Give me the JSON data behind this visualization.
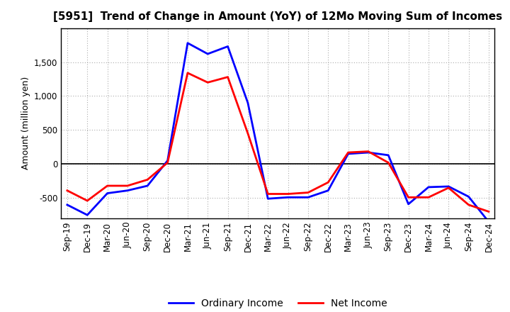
{
  "title": "[5951]  Trend of Change in Amount (YoY) of 12Mo Moving Sum of Incomes",
  "ylabel": "Amount (million yen)",
  "x_labels": [
    "Sep-19",
    "Dec-19",
    "Mar-20",
    "Jun-20",
    "Sep-20",
    "Dec-20",
    "Mar-21",
    "Jun-21",
    "Sep-21",
    "Dec-21",
    "Mar-22",
    "Jun-22",
    "Sep-22",
    "Dec-22",
    "Mar-23",
    "Jun-23",
    "Sep-23",
    "Dec-23",
    "Mar-24",
    "Jun-24",
    "Sep-24",
    "Dec-24"
  ],
  "ordinary_income": [
    -600,
    -750,
    -430,
    -390,
    -320,
    50,
    1780,
    1620,
    1730,
    900,
    -510,
    -490,
    -490,
    -390,
    150,
    170,
    130,
    -590,
    -340,
    -330,
    -480,
    -850
  ],
  "net_income": [
    -390,
    -540,
    -320,
    -320,
    -230,
    20,
    1340,
    1200,
    1280,
    450,
    -440,
    -440,
    -420,
    -270,
    170,
    185,
    20,
    -490,
    -490,
    -350,
    -600,
    -700
  ],
  "ordinary_income_color": "#0000FF",
  "net_income_color": "#FF0000",
  "background_color": "#FFFFFF",
  "grid_color": "#AAAAAA",
  "ylim": [
    -800,
    2000
  ],
  "yticks": [
    -500,
    0,
    500,
    1000,
    1500
  ],
  "legend_labels": [
    "Ordinary Income",
    "Net Income"
  ],
  "line_width": 2.0,
  "title_fontsize": 11,
  "ylabel_fontsize": 9,
  "tick_fontsize": 8.5,
  "legend_fontsize": 10
}
